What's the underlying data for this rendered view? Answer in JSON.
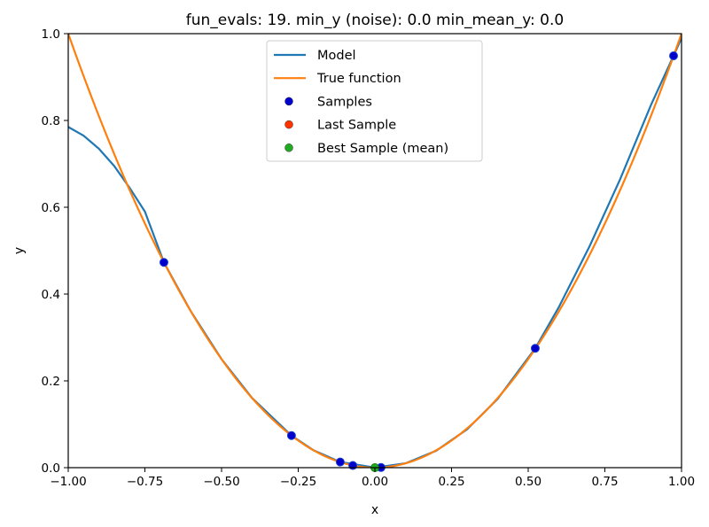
{
  "chart_data": {
    "type": "line",
    "title": "fun_evals: 19. min_y (noise): 0.0 min_mean_y: 0.0",
    "xlabel": "x",
    "ylabel": "y",
    "xlim": [
      -1.0,
      1.0
    ],
    "ylim": [
      0.0,
      1.0
    ],
    "grid": false,
    "legend_placement": "top-center",
    "x_ticks": [
      "−1.00",
      "−0.75",
      "−0.50",
      "−0.25",
      "0.00",
      "0.25",
      "0.50",
      "0.75",
      "1.00"
    ],
    "x_tick_values": [
      -1,
      -0.75,
      -0.5,
      -0.25,
      0,
      0.25,
      0.5,
      0.75,
      1
    ],
    "y_ticks": [
      "0.0",
      "0.2",
      "0.4",
      "0.6",
      "0.8",
      "1.0"
    ],
    "y_tick_values": [
      0,
      0.2,
      0.4,
      0.6,
      0.8,
      1.0
    ],
    "series": [
      {
        "name": "Model",
        "kind": "line",
        "color": "#1f77b4",
        "x": [
          -1.0,
          -0.95,
          -0.9,
          -0.85,
          -0.8,
          -0.75,
          -0.688,
          -0.6,
          -0.5,
          -0.4,
          -0.272,
          -0.2,
          -0.113,
          0.0,
          0.1,
          0.2,
          0.3,
          0.4,
          0.523,
          0.6,
          0.7,
          0.8,
          0.9,
          0.974,
          1.0
        ],
        "y": [
          0.785,
          0.765,
          0.735,
          0.695,
          0.645,
          0.59,
          0.473,
          0.36,
          0.25,
          0.16,
          0.074,
          0.04,
          0.013,
          0.0,
          0.01,
          0.039,
          0.088,
          0.158,
          0.275,
          0.37,
          0.51,
          0.665,
          0.835,
          0.949,
          0.99
        ]
      },
      {
        "name": "True function",
        "kind": "line",
        "color": "#ff7f0e",
        "function": "x^2"
      },
      {
        "name": "Samples",
        "kind": "scatter",
        "color": "#0000cc",
        "x": [
          -0.688,
          -0.272,
          -0.113,
          -0.072,
          0.02,
          0.523,
          0.974
        ],
        "y": [
          0.473,
          0.074,
          0.013,
          0.005,
          0.0004,
          0.275,
          0.949
        ]
      },
      {
        "name": "Last Sample",
        "kind": "scatter",
        "color": "#ff3300",
        "x": [],
        "y": []
      },
      {
        "name": "Best Sample (mean)",
        "kind": "scatter",
        "color": "#22aa22",
        "x": [
          0.0
        ],
        "y": [
          0.0
        ]
      }
    ]
  }
}
